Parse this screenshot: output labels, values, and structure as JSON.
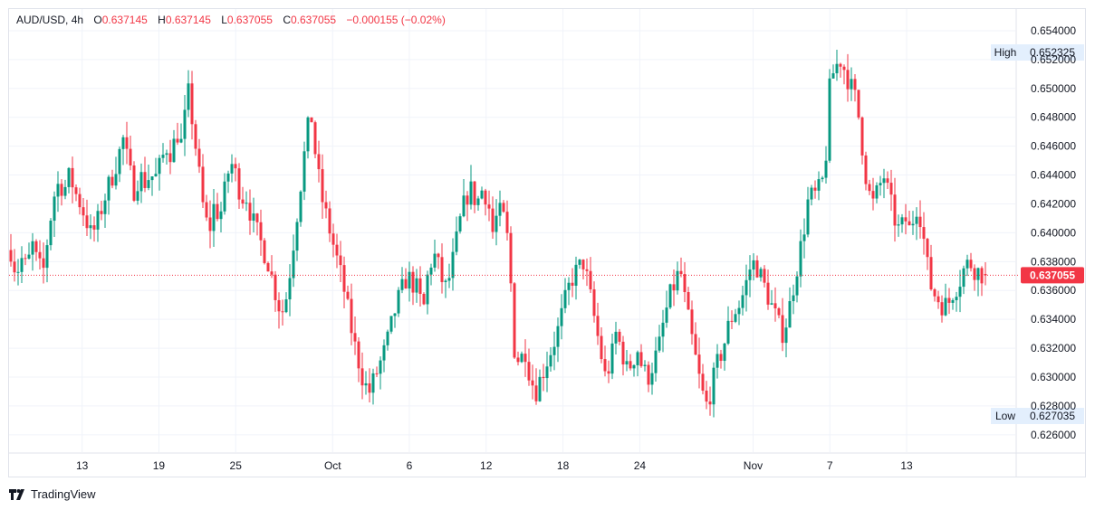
{
  "legend": {
    "symbol": "AUD/USD",
    "interval": "4h",
    "open_label": "O",
    "open": "0.637145",
    "high_label": "H",
    "high": "0.637145",
    "low_label": "L",
    "low": "0.637055",
    "close_label": "C",
    "close": "0.637055",
    "change": "−0.000155 (−0.02%)"
  },
  "colors": {
    "up": "#089981",
    "down": "#f23645",
    "grid": "#f0f3fa",
    "text": "#131722",
    "tag_bg": "#e3effd"
  },
  "brand": "TradingView",
  "chart_data": {
    "type": "candlestick",
    "title": "AUD/USD, 4h",
    "ylim": [
      0.6248,
      0.6555
    ],
    "y_ticks": [
      "0.654000",
      "0.652000",
      "0.650000",
      "0.648000",
      "0.646000",
      "0.644000",
      "0.642000",
      "0.640000",
      "0.638000",
      "0.636000",
      "0.634000",
      "0.632000",
      "0.630000",
      "0.628000",
      "0.626000"
    ],
    "x_ticks": [
      {
        "label": "13",
        "pos": 0.0726
      },
      {
        "label": "19",
        "pos": 0.1489
      },
      {
        "label": "25",
        "pos": 0.2252
      },
      {
        "label": "Oct",
        "pos": 0.3216
      },
      {
        "label": "6",
        "pos": 0.3978
      },
      {
        "label": "12",
        "pos": 0.4741
      },
      {
        "label": "18",
        "pos": 0.5505
      },
      {
        "label": "24",
        "pos": 0.6268
      },
      {
        "label": "Nov",
        "pos": 0.7394
      },
      {
        "label": "7",
        "pos": 0.8157
      },
      {
        "label": "13",
        "pos": 0.892
      }
    ],
    "last_price": {
      "value": 0.637055,
      "label": "0.637055"
    },
    "high_marker": {
      "label": "High",
      "value": "0.652325"
    },
    "low_marker": {
      "label": "Low",
      "value": "0.627035"
    },
    "price_path": [
      0.6388,
      0.6372,
      0.6382,
      0.6375,
      0.6392,
      0.6378,
      0.6372,
      0.64,
      0.6425,
      0.6435,
      0.643,
      0.644,
      0.6428,
      0.642,
      0.641,
      0.6398,
      0.6405,
      0.6418,
      0.643,
      0.644,
      0.6452,
      0.6465,
      0.6445,
      0.643,
      0.644,
      0.6435,
      0.644,
      0.6438,
      0.6448,
      0.646,
      0.6455,
      0.647,
      0.646,
      0.65,
      0.6475,
      0.6445,
      0.6415,
      0.64,
      0.642,
      0.641,
      0.643,
      0.645,
      0.644,
      0.6425,
      0.6425,
      0.641,
      0.64,
      0.639,
      0.638,
      0.6365,
      0.635,
      0.6345,
      0.637,
      0.64,
      0.643,
      0.646,
      0.6485,
      0.645,
      0.6425,
      0.641,
      0.6395,
      0.638,
      0.6365,
      0.6345,
      0.6325,
      0.631,
      0.6295,
      0.629,
      0.63,
      0.631,
      0.632,
      0.6335,
      0.635,
      0.636,
      0.637,
      0.6365,
      0.636,
      0.6345,
      0.6375,
      0.6385,
      0.6375,
      0.636,
      0.637,
      0.639,
      0.641,
      0.6425,
      0.643,
      0.642,
      0.643,
      0.6425,
      0.64,
      0.6415,
      0.641,
      0.639,
      0.632,
      0.631,
      0.632,
      0.63,
      0.629,
      0.63,
      0.631,
      0.632,
      0.633,
      0.6345,
      0.636,
      0.637,
      0.6375,
      0.638,
      0.636,
      0.634,
      0.632,
      0.63,
      0.631,
      0.633,
      0.632,
      0.6305,
      0.631,
      0.632,
      0.6305,
      0.63,
      0.631,
      0.632,
      0.634,
      0.6355,
      0.6365,
      0.6375,
      0.635,
      0.633,
      0.631,
      0.629,
      0.628,
      0.6295,
      0.631,
      0.632,
      0.6335,
      0.6345,
      0.635,
      0.636,
      0.6375,
      0.638,
      0.637,
      0.636,
      0.635,
      0.634,
      0.633,
      0.634,
      0.636,
      0.638,
      0.64,
      0.6425,
      0.6425,
      0.643,
      0.644,
      0.6505,
      0.6515,
      0.652,
      0.651,
      0.65,
      0.649,
      0.646,
      0.643,
      0.642,
      0.643,
      0.644,
      0.6425,
      0.641,
      0.64,
      0.641,
      0.64,
      0.642,
      0.641,
      0.638,
      0.636,
      0.6355,
      0.635,
      0.635,
      0.636,
      0.6365,
      0.6375,
      0.638,
      0.6375,
      0.6372,
      0.63706
    ]
  }
}
